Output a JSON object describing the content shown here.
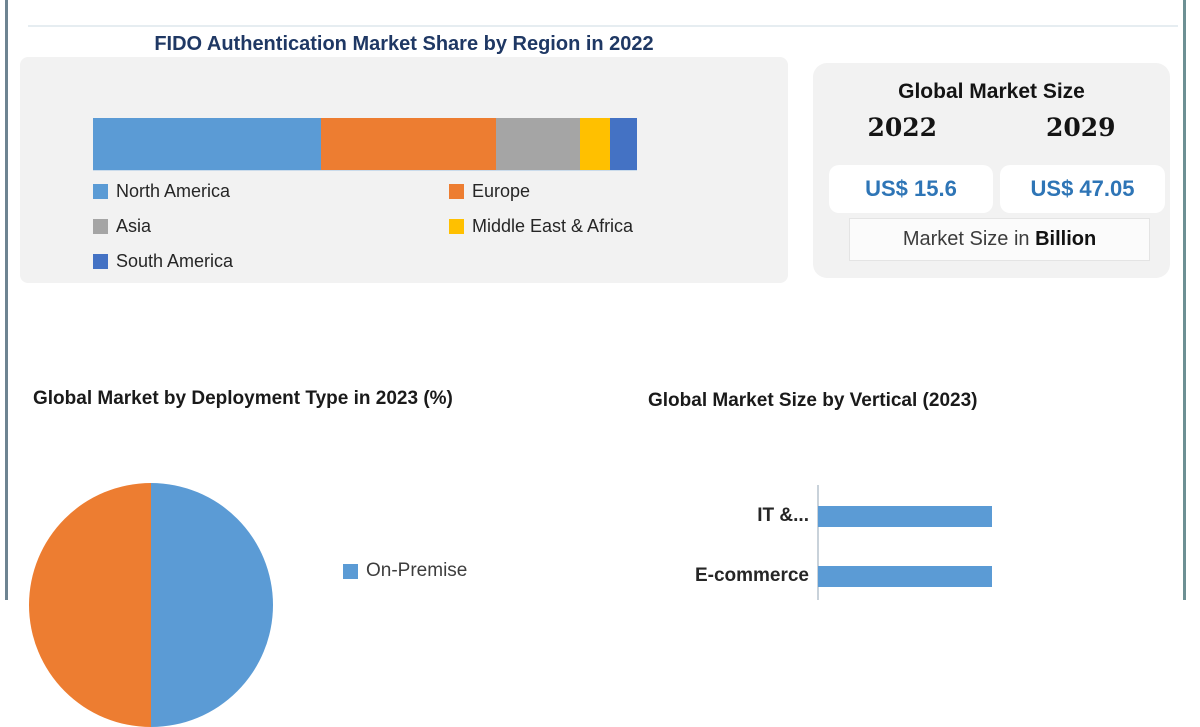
{
  "frame": {
    "background": "#ffffff",
    "left_border_color": "#6e8492",
    "right_border_color": "#6d9094",
    "panel_background": "#f2f2f2",
    "region_title_color": "#1f3864",
    "value_text_color": "#2e75b6"
  },
  "market_size_panel": {
    "title": "Global Market Size",
    "columns": [
      {
        "year": "2022",
        "value": "US$ 15.6"
      },
      {
        "year": "2029",
        "value": "US$ 47.05"
      }
    ],
    "caption_regular": "Market Size in ",
    "caption_bold": "Billion"
  },
  "chart_data": [
    {
      "id": "region-share",
      "type": "bar",
      "subtype": "horizontal-stacked",
      "title": "FIDO Authentication Market Share by Region in 2022",
      "values_estimated": true,
      "series": [
        {
          "name": "North America",
          "value": 42,
          "color": "#5b9bd5"
        },
        {
          "name": "Europe",
          "value": 32,
          "color": "#ed7d31"
        },
        {
          "name": "Asia",
          "value": 15.5,
          "color": "#a5a5a5"
        },
        {
          "name": "Middle East & Africa",
          "value": 5.5,
          "color": "#ffc000"
        },
        {
          "name": "South America",
          "value": 5,
          "color": "#4472c4"
        }
      ],
      "legend_position": "bottom",
      "legend_columns": 2,
      "axis_labels_visible": false
    },
    {
      "id": "deployment-type",
      "type": "pie",
      "title": "Global Market by Deployment Type in 2023 (%)",
      "values_estimated": true,
      "cropped_at_image_bottom": true,
      "slices": [
        {
          "label": "On-Premise",
          "value": 50,
          "color": "#5b9bd5"
        },
        {
          "label": "",
          "value": 50,
          "color": "#ed7d31"
        }
      ],
      "legend_visible_entries": [
        "On-Premise"
      ],
      "legend_position": "right"
    },
    {
      "id": "vertical-size",
      "type": "bar",
      "subtype": "horizontal",
      "title": "Global Market Size by Vertical (2023)",
      "values_estimated": true,
      "categories": [
        "IT &...",
        "E-commerce"
      ],
      "values": [
        1,
        1
      ],
      "bar_color": "#5b9bd5",
      "axis_labels_visible": false
    }
  ]
}
